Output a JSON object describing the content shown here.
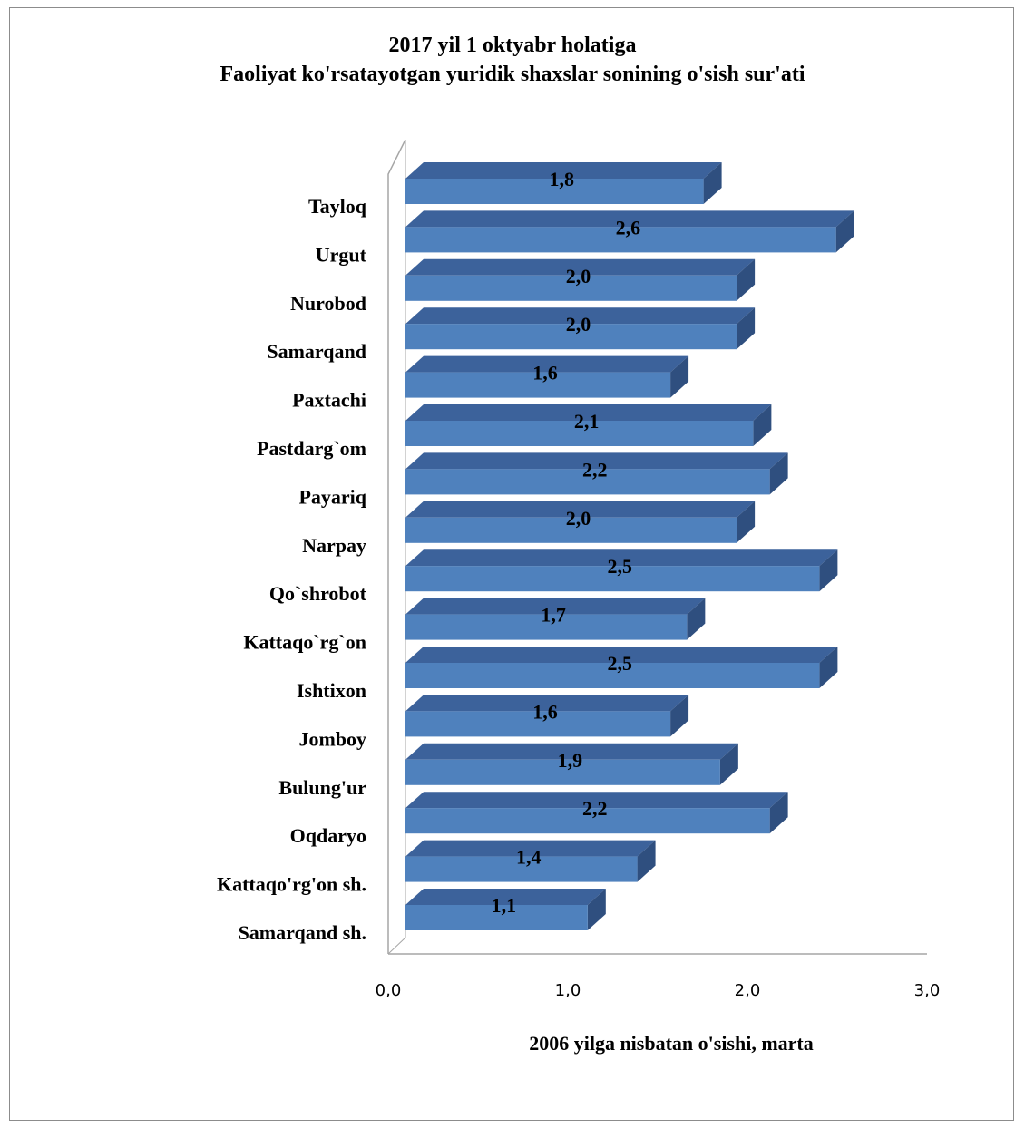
{
  "chart_data": {
    "type": "bar",
    "orientation": "horizontal",
    "style": "3d",
    "title_line1": "2017  yil 1 oktyabr holatiga",
    "title_line2": "Faoliyat ko'rsatayotgan yuridik shaxslar sonining o'sish sur'ati",
    "xlabel": "2006 yilga nisbatan o'sishi, marta",
    "ylabel": "",
    "xlim": [
      0,
      3
    ],
    "x_ticks": [
      "0,0",
      "1,0",
      "2,0",
      "3,0"
    ],
    "grid": false,
    "legend": "none",
    "bar_color": "#4f81bd",
    "categories": [
      "Tayloq",
      "Urgut",
      "Nurobod",
      "Samarqand",
      "Paxtachi",
      "Pastdarg`om",
      "Payariq",
      "Narpay",
      "Qo`shrobot",
      "Kattaqo`rg`on",
      "Ishtixon",
      "Jomboy",
      "Bulung'ur",
      "Oqdaryo",
      "Kattaqo'rg'on sh.",
      "Samarqand sh."
    ],
    "values": [
      1.8,
      2.6,
      2.0,
      2.0,
      1.6,
      2.1,
      2.2,
      2.0,
      2.5,
      1.7,
      2.5,
      1.6,
      1.9,
      2.2,
      1.4,
      1.1
    ],
    "value_labels": [
      "1,8",
      "2,6",
      "2,0",
      "2,0",
      "1,6",
      "2,1",
      "2,2",
      "2,0",
      "2,5",
      "1,7",
      "2,5",
      "1,6",
      "1,9",
      "2,2",
      "1,4",
      "1,1"
    ]
  }
}
